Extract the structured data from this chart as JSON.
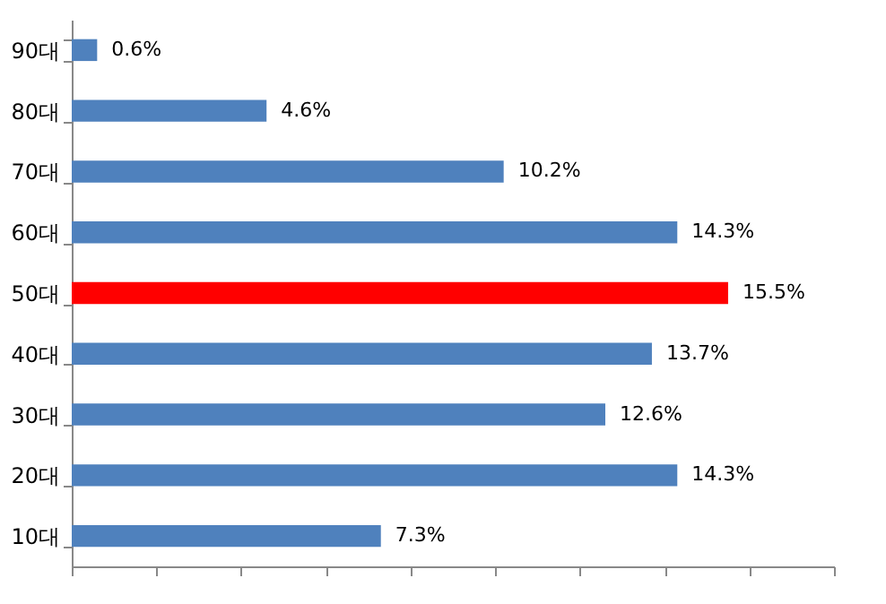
{
  "chart_data": {
    "type": "bar",
    "orientation": "horizontal",
    "categories": [
      "90대",
      "80대",
      "70대",
      "60대",
      "50대",
      "40대",
      "30대",
      "20대",
      "10대"
    ],
    "values": [
      0.6,
      4.6,
      10.2,
      14.3,
      15.5,
      13.7,
      12.6,
      14.3,
      7.3
    ],
    "value_labels": [
      "0.6%",
      "4.6%",
      "10.2%",
      "14.3%",
      "15.5%",
      "13.7%",
      "12.6%",
      "14.3%",
      "7.3%"
    ],
    "colors": [
      "#4f81bd",
      "#4f81bd",
      "#4f81bd",
      "#4f81bd",
      "#ff0000",
      "#4f81bd",
      "#4f81bd",
      "#4f81bd",
      "#4f81bd"
    ],
    "xlim": [
      0,
      18
    ],
    "xticks": [
      {
        "value": 0,
        "label": null
      },
      {
        "value": 2,
        "label": null
      },
      {
        "value": 4,
        "label": null
      },
      {
        "value": 6,
        "label": null
      },
      {
        "value": 8,
        "label": null
      },
      {
        "value": 10,
        "label": null
      },
      {
        "value": 12,
        "label": null
      },
      {
        "value": 14,
        "label": null
      },
      {
        "value": 16,
        "label": null
      },
      {
        "value": 18,
        "label": null
      }
    ],
    "tick_labels": "y",
    "grid": false
  }
}
